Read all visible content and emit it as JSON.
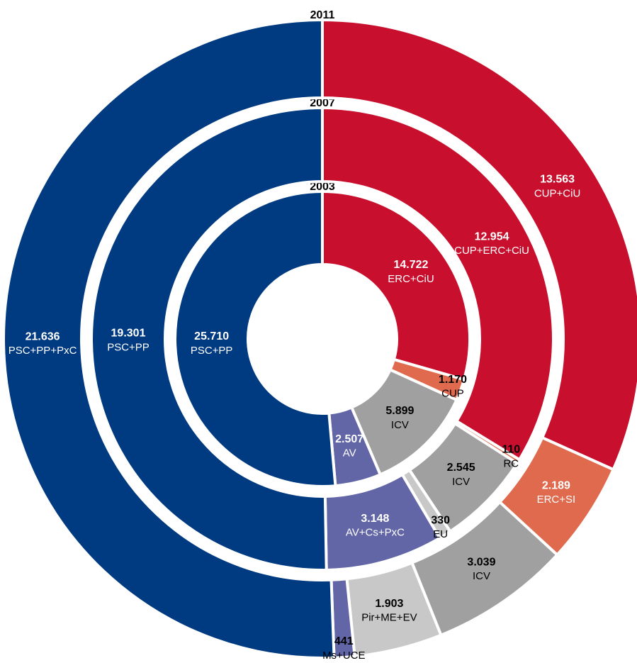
{
  "chart_data": {
    "type": "donut",
    "rings": [
      {
        "name": "2003",
        "categories": [
          "ERC+CiU",
          "CUP",
          "ICV",
          "AV",
          "PSC+PP"
        ],
        "values": [
          14722,
          1170,
          5899,
          2507,
          25710
        ],
        "value_labels": [
          "14.722",
          "1.170",
          "5.899",
          "2.507",
          "25.710"
        ],
        "colors": [
          "#c8102e",
          "#e06a4e",
          "#a0a0a0",
          "#6266a6",
          "#003a80"
        ]
      },
      {
        "name": "2007",
        "categories": [
          "CUP+ERC+CiU",
          "RC",
          "ICV",
          "EU",
          "AV+Cs+PxC",
          "PSC+PP"
        ],
        "values": [
          12954,
          110,
          2545,
          330,
          3148,
          19301
        ],
        "value_labels": [
          "12.954",
          "110",
          "2.545",
          "330",
          "3.148",
          "19.301"
        ],
        "colors": [
          "#c8102e",
          "#e06a4e",
          "#a0a0a0",
          "#c8c8c8",
          "#6266a6",
          "#003a80"
        ]
      },
      {
        "name": "2011",
        "categories": [
          "CUP+CiU",
          "ERC+SI",
          "ICV",
          "Pir+ME+EV",
          "Ms+UCE",
          "PSC+PP+PxC"
        ],
        "values": [
          13563,
          2189,
          3039,
          1903,
          441,
          21636
        ],
        "value_labels": [
          "13.563",
          "2.189",
          "3.039",
          "1.903",
          "441",
          "21.636"
        ],
        "colors": [
          "#c8102e",
          "#e06a4e",
          "#a0a0a0",
          "#c8c8c8",
          "#6266a6",
          "#003a80"
        ]
      }
    ]
  }
}
